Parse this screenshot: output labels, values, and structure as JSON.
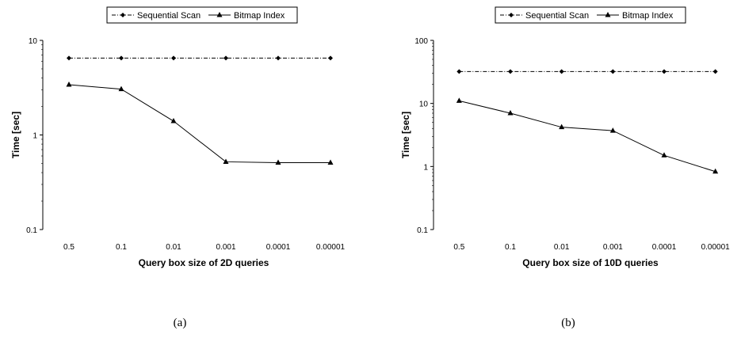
{
  "chart_data": [
    {
      "type": "line",
      "caption": "(a)",
      "xlabel": "Query box size of 2D queries",
      "ylabel": "Time [sec]",
      "yscale": "log",
      "ylim": [
        0.1,
        10
      ],
      "yticks": [
        "0.1",
        "1",
        "10"
      ],
      "categories": [
        "0.5",
        "0.1",
        "0.01",
        "0.001",
        "0.0001",
        "0.00001"
      ],
      "legend_position": "top",
      "series": [
        {
          "name": "Sequential Scan",
          "values": [
            6.5,
            6.5,
            6.5,
            6.5,
            6.5,
            6.5
          ],
          "line_style": "dash-dot",
          "marker": "diamond"
        },
        {
          "name": "Bitmap Index",
          "values": [
            3.4,
            3.05,
            1.4,
            0.52,
            0.51,
            0.51
          ],
          "line_style": "solid",
          "marker": "triangle"
        }
      ]
    },
    {
      "type": "line",
      "caption": "(b)",
      "xlabel": "Query box size of 10D queries",
      "ylabel": "Time [sec]",
      "yscale": "log",
      "ylim": [
        0.1,
        100
      ],
      "yticks": [
        "0.1",
        "1",
        "10",
        "100"
      ],
      "categories": [
        "0.5",
        "0.1",
        "0.01",
        "0.001",
        "0.0001",
        "0.00001"
      ],
      "legend_position": "top",
      "series": [
        {
          "name": "Sequential Scan",
          "values": [
            32,
            32,
            32,
            32,
            32,
            32
          ],
          "line_style": "dash-dot",
          "marker": "diamond"
        },
        {
          "name": "Bitmap Index",
          "values": [
            11,
            7,
            4.2,
            3.7,
            1.5,
            0.83
          ],
          "line_style": "solid",
          "marker": "triangle"
        }
      ]
    }
  ]
}
